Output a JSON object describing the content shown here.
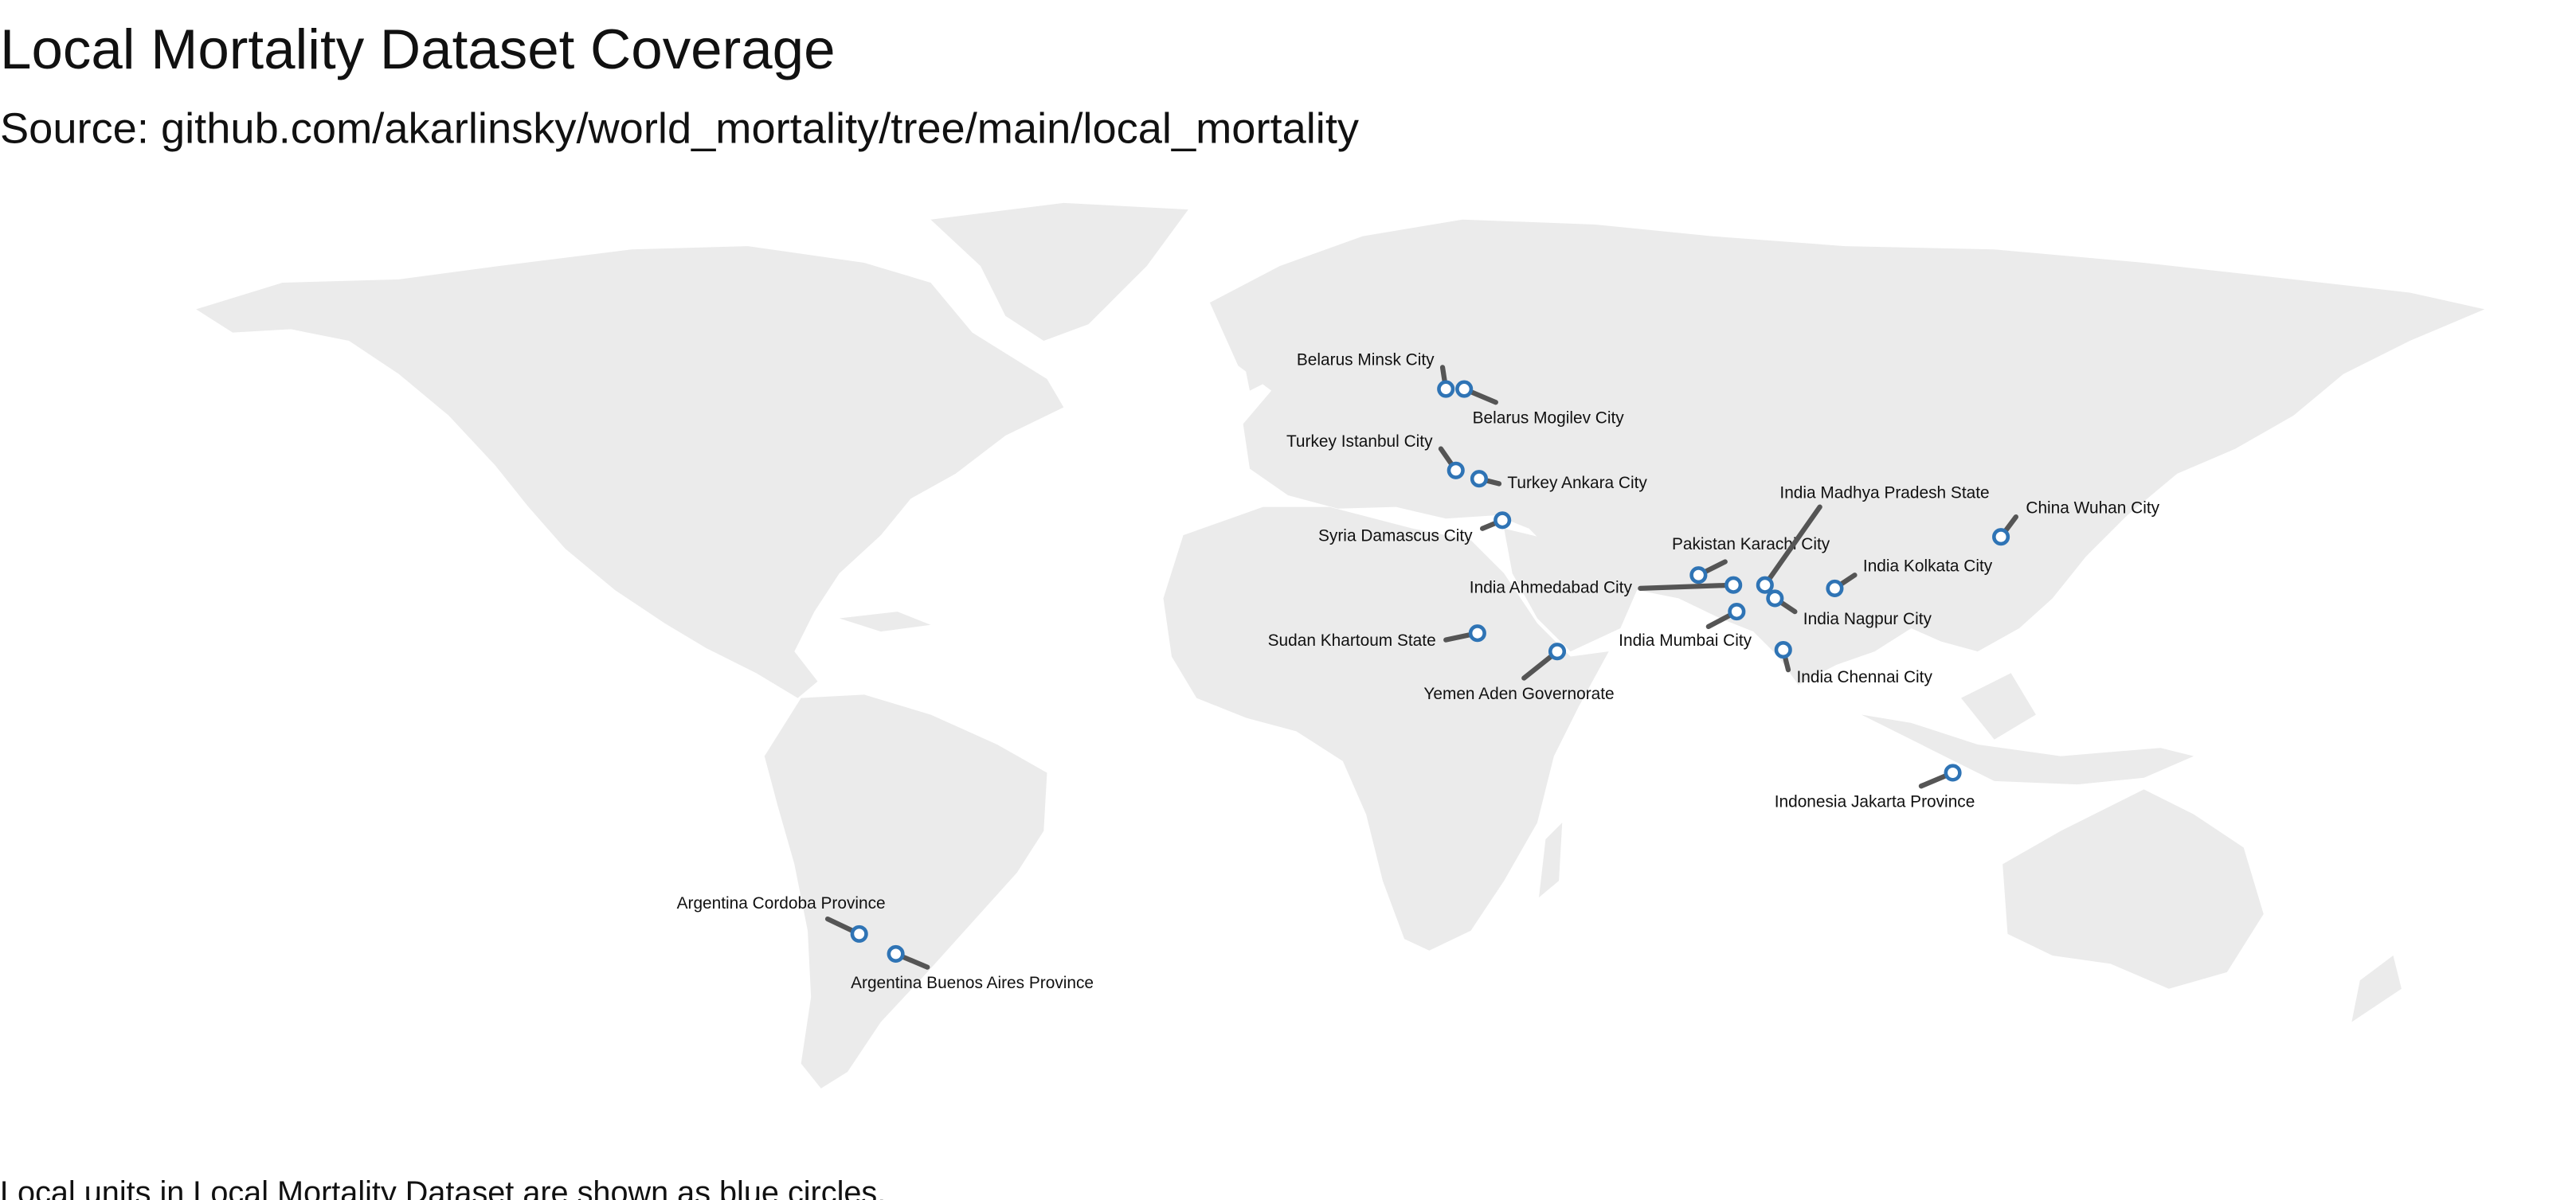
{
  "title": "Local Mortality Dataset Coverage",
  "subtitle": "Source: github.com/akarlinsky/world_mortality/tree/main/local_mortality",
  "footnote": "Local units in Local Mortality Dataset are shown as blue circles.",
  "locations": [
    {
      "label": "Belarus Minsk City"
    },
    {
      "label": "Belarus Mogilev City"
    },
    {
      "label": "Turkey Istanbul City"
    },
    {
      "label": "Turkey Ankara City"
    },
    {
      "label": "Syria Damascus City"
    },
    {
      "label": "Pakistan Karachi City"
    },
    {
      "label": "India Ahmedabad City"
    },
    {
      "label": "India Madhya Pradesh State"
    },
    {
      "label": "India Nagpur City"
    },
    {
      "label": "India Kolkata City"
    },
    {
      "label": "India Mumbai City"
    },
    {
      "label": "India Chennai City"
    },
    {
      "label": "China Wuhan City"
    },
    {
      "label": "Sudan Khartoum State"
    },
    {
      "label": "Yemen Aden Governorate"
    },
    {
      "label": "Indonesia Jakarta Province"
    },
    {
      "label": "Argentina Cordoba Province"
    },
    {
      "label": "Argentina Buenos Aires Province"
    }
  ]
}
